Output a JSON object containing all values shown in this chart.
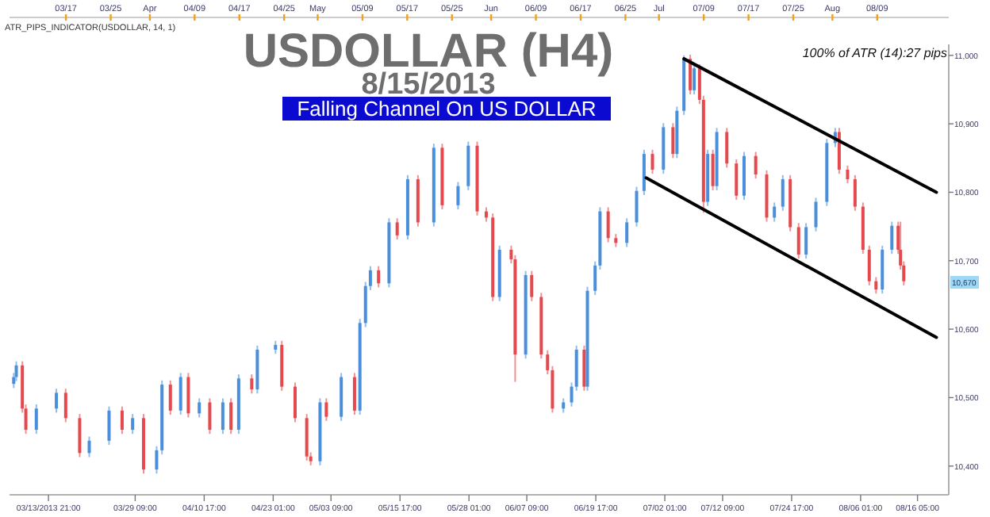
{
  "chart_data": {
    "type": "candlestick",
    "title": "USDOLLAR (H4)",
    "subtitle": "8/15/2013",
    "annotations": [
      "ATR_PIPS_INDICATOR(USDOLLAR, 14, 1)",
      "100% of ATR (14):27 pips",
      "Falling Channel On US DOLLAR",
      "10,670"
    ],
    "x": [
      "2013-03-07T16:00",
      "2013-03-08T03:00",
      "2013-03-09T05:00",
      "2013-03-09T20:00",
      "2013-03-11T17:00",
      "2013-03-15T07:00",
      "2013-03-16T23:00",
      "2013-03-19T11:00",
      "2013-03-21T04:00",
      "2013-03-24T17:00",
      "2013-03-27T01:00",
      "2013-03-28T22:00",
      "2013-03-30T21:00",
      "2013-04-02T05:00",
      "2013-04-03T04:00",
      "2013-04-04T16:00",
      "2013-04-06T12:00",
      "2013-04-07T21:00",
      "2013-04-09T20:00",
      "2013-04-11T17:00",
      "2013-04-14T01:00",
      "2013-04-15T12:00",
      "2013-04-16T21:00",
      "2013-04-19T05:00",
      "2013-04-20T05:00",
      "2013-04-23T11:00",
      "2013-04-24T14:00",
      "2013-04-26T23:00",
      "2013-04-29T01:00",
      "2013-04-29T18:00",
      "2013-05-01T10:00",
      "2013-05-02T13:00",
      "2013-05-05T05:00",
      "2013-05-07T14:00",
      "2013-05-08T13:00",
      "2013-05-09T13:00",
      "2013-05-10T10:00",
      "2013-05-11T21:00",
      "2013-05-13T18:00",
      "2013-05-15T05:00",
      "2013-05-17T02:00",
      "2013-05-18T22:00",
      "2013-05-21T18:00",
      "2013-05-23T06:00",
      "2013-05-26T02:00",
      "2013-05-27T22:00",
      "2013-05-29T12:00",
      "2013-05-31T03:00",
      "2013-06-01T07:00",
      "2013-06-02T12:00",
      "2013-06-04T14:00",
      "2013-06-05T07:00",
      "2013-06-07T04:00",
      "2013-06-08T06:00",
      "2013-06-09T23:00",
      "2013-06-11T02:00",
      "2013-06-11T23:00",
      "2013-06-13T22:00",
      "2013-06-15T09:00",
      "2013-06-16T06:00",
      "2013-06-17T15:00",
      "2013-06-18T05:00",
      "2013-06-19T14:00",
      "2013-06-20T11:00",
      "2013-06-21T22:00",
      "2013-06-23T07:00",
      "2013-06-25T06:00",
      "2013-06-27T00:00",
      "2013-06-28T08:00",
      "2013-06-29T20:00",
      "2013-07-01T19:00",
      "2013-07-03T12:00",
      "2013-07-04T05:00",
      "2013-07-05T11:00",
      "2013-07-06T14:00",
      "2013-07-07T07:00",
      "2013-07-08T06:00",
      "2013-07-08T23:00",
      "2013-07-09T17:00",
      "2013-07-10T15:00",
      "2013-07-11T08:00",
      "2013-07-13T03:00",
      "2013-07-14T20:00",
      "2013-07-16T05:00",
      "2013-07-18T07:00",
      "2013-07-20T06:00",
      "2013-07-21T15:00",
      "2013-07-23T03:00",
      "2013-07-24T11:00",
      "2013-07-25T23:00",
      "2013-07-27T07:00",
      "2013-07-29T01:00",
      "2013-07-31T00:00",
      "2013-08-01T12:00",
      "2013-08-02T05:00",
      "2013-08-03T17:00",
      "2013-08-05T01:00",
      "2013-08-06T11:00",
      "2013-08-07T14:00",
      "2013-08-08T19:00",
      "2013-08-09T22:00",
      "2013-08-11T15:00",
      "2013-08-12T18:00",
      "2013-08-13T04:00",
      "2013-08-13T18:00"
    ],
    "ohlc": [
      [
        10520,
        10536,
        10514,
        10530
      ],
      [
        10530,
        10553,
        10524,
        10547
      ],
      [
        10547,
        10553,
        10478,
        10484
      ],
      [
        10484,
        10490,
        10447,
        10453
      ],
      [
        10453,
        10490,
        10447,
        10484
      ],
      [
        10484,
        10513,
        10478,
        10507
      ],
      [
        10507,
        10513,
        10464,
        10470
      ],
      [
        10470,
        10476,
        10413,
        10419
      ],
      [
        10419,
        10443,
        10413,
        10437
      ],
      [
        10437,
        10487,
        10431,
        10481
      ],
      [
        10481,
        10487,
        10447,
        10453
      ],
      [
        10453,
        10476,
        10447,
        10470
      ],
      [
        10470,
        10476,
        10389,
        10395
      ],
      [
        10395,
        10429,
        10389,
        10423
      ],
      [
        10423,
        10525,
        10417,
        10519
      ],
      [
        10519,
        10525,
        10475,
        10481
      ],
      [
        10481,
        10536,
        10475,
        10530
      ],
      [
        10530,
        10536,
        10471,
        10477
      ],
      [
        10477,
        10499,
        10471,
        10493
      ],
      [
        10493,
        10499,
        10447,
        10453
      ],
      [
        10453,
        10499,
        10447,
        10493
      ],
      [
        10493,
        10499,
        10447,
        10453
      ],
      [
        10453,
        10534,
        10447,
        10528
      ],
      [
        10528,
        10534,
        10506,
        10512
      ],
      [
        10512,
        10576,
        10506,
        10570
      ],
      [
        10570,
        10583,
        10564,
        10577
      ],
      [
        10577,
        10583,
        10510,
        10516
      ],
      [
        10516,
        10522,
        10464,
        10470
      ],
      [
        10470,
        10476,
        10408,
        10414
      ],
      [
        10414,
        10420,
        10401,
        10407
      ],
      [
        10407,
        10499,
        10401,
        10493
      ],
      [
        10493,
        10499,
        10466,
        10472
      ],
      [
        10472,
        10536,
        10466,
        10530
      ],
      [
        10530,
        10536,
        10475,
        10481
      ],
      [
        10481,
        10615,
        10475,
        10609
      ],
      [
        10609,
        10669,
        10603,
        10663
      ],
      [
        10663,
        10692,
        10657,
        10686
      ],
      [
        10686,
        10692,
        10661,
        10667
      ],
      [
        10667,
        10762,
        10661,
        10756
      ],
      [
        10756,
        10762,
        10731,
        10737
      ],
      [
        10737,
        10825,
        10731,
        10819
      ],
      [
        10819,
        10825,
        10750,
        10756
      ],
      [
        10756,
        10871,
        10750,
        10865
      ],
      [
        10865,
        10871,
        10775,
        10781
      ],
      [
        10781,
        10815,
        10775,
        10809
      ],
      [
        10809,
        10874,
        10803,
        10868
      ],
      [
        10868,
        10874,
        10766,
        10772
      ],
      [
        10772,
        10778,
        10757,
        10763
      ],
      [
        10763,
        10769,
        10641,
        10647
      ],
      [
        10647,
        10722,
        10641,
        10716
      ],
      [
        10716,
        10722,
        10696,
        10702
      ],
      [
        10702,
        10708,
        10523,
        10563
      ],
      [
        10563,
        10685,
        10557,
        10679
      ],
      [
        10679,
        10685,
        10641,
        10647
      ],
      [
        10647,
        10653,
        10557,
        10563
      ],
      [
        10563,
        10569,
        10534,
        10540
      ],
      [
        10540,
        10546,
        10478,
        10484
      ],
      [
        10484,
        10499,
        10478,
        10493
      ],
      [
        10493,
        10522,
        10487,
        10516
      ],
      [
        10516,
        10576,
        10510,
        10570
      ],
      [
        10570,
        10576,
        10510,
        10516
      ],
      [
        10516,
        10662,
        10510,
        10656
      ],
      [
        10656,
        10699,
        10650,
        10693
      ],
      [
        10693,
        10778,
        10687,
        10772
      ],
      [
        10772,
        10778,
        10727,
        10733
      ],
      [
        10733,
        10739,
        10720,
        10726
      ],
      [
        10726,
        10762,
        10720,
        10756
      ],
      [
        10756,
        10808,
        10750,
        10802
      ],
      [
        10802,
        10862,
        10796,
        10856
      ],
      [
        10856,
        10862,
        10827,
        10833
      ],
      [
        10833,
        10901,
        10827,
        10895
      ],
      [
        10895,
        10901,
        10850,
        10856
      ],
      [
        10856,
        10925,
        10850,
        10919
      ],
      [
        10919,
        11000,
        10913,
        10995
      ],
      [
        10995,
        11001,
        10943,
        10949
      ],
      [
        10949,
        10987,
        10943,
        10981
      ],
      [
        10981,
        10987,
        10929,
        10935
      ],
      [
        10935,
        10941,
        10770,
        10786
      ],
      [
        10786,
        10862,
        10780,
        10856
      ],
      [
        10856,
        10862,
        10803,
        10809
      ],
      [
        10809,
        10894,
        10803,
        10888
      ],
      [
        10888,
        10894,
        10836,
        10842
      ],
      [
        10842,
        10848,
        10789,
        10795
      ],
      [
        10795,
        10859,
        10789,
        10853
      ],
      [
        10853,
        10859,
        10820,
        10826
      ],
      [
        10826,
        10832,
        10757,
        10763
      ],
      [
        10763,
        10785,
        10757,
        10779
      ],
      [
        10779,
        10825,
        10773,
        10819
      ],
      [
        10819,
        10825,
        10743,
        10749
      ],
      [
        10749,
        10755,
        10703,
        10709
      ],
      [
        10709,
        10755,
        10703,
        10749
      ],
      [
        10749,
        10792,
        10743,
        10786
      ],
      [
        10786,
        10878,
        10780,
        10872
      ],
      [
        10872,
        10894,
        10866,
        10888
      ],
      [
        10888,
        10894,
        10827,
        10833
      ],
      [
        10833,
        10839,
        10813,
        10819
      ],
      [
        10819,
        10825,
        10773,
        10779
      ],
      [
        10779,
        10785,
        10710,
        10716
      ],
      [
        10716,
        10722,
        10664,
        10670
      ],
      [
        10670,
        10676,
        10652,
        10658
      ],
      [
        10658,
        10722,
        10652,
        10716
      ],
      [
        10716,
        10757,
        10710,
        10751
      ],
      [
        10751,
        10757,
        10710,
        10716
      ],
      [
        10716,
        10757,
        10687,
        10693
      ],
      [
        10693,
        10699,
        10664,
        10670
      ]
    ],
    "colors": [
      "#4a8fdb",
      "#4a8fdb",
      "#e5484d",
      "#e5484d",
      "#4a8fdb",
      "#4a8fdb",
      "#e5484d",
      "#e5484d",
      "#4a8fdb",
      "#4a8fdb",
      "#e5484d",
      "#4a8fdb",
      "#e5484d",
      "#4a8fdb",
      "#4a8fdb",
      "#e5484d",
      "#4a8fdb",
      "#e5484d",
      "#4a8fdb",
      "#e5484d",
      "#4a8fdb",
      "#e5484d",
      "#4a8fdb",
      "#e5484d",
      "#4a8fdb",
      "#4a8fdb",
      "#e5484d",
      "#e5484d",
      "#e5484d",
      "#e5484d",
      "#4a8fdb",
      "#e5484d",
      "#4a8fdb",
      "#e5484d",
      "#4a8fdb",
      "#4a8fdb",
      "#4a8fdb",
      "#e5484d",
      "#4a8fdb",
      "#e5484d",
      "#4a8fdb",
      "#e5484d",
      "#4a8fdb",
      "#e5484d",
      "#4a8fdb",
      "#4a8fdb",
      "#e5484d",
      "#e5484d",
      "#e5484d",
      "#4a8fdb",
      "#e5484d",
      "#e5484d",
      "#4a8fdb",
      "#e5484d",
      "#e5484d",
      "#e5484d",
      "#e5484d",
      "#4a8fdb",
      "#4a8fdb",
      "#4a8fdb",
      "#e5484d",
      "#4a8fdb",
      "#4a8fdb",
      "#4a8fdb",
      "#e5484d",
      "#e5484d",
      "#4a8fdb",
      "#4a8fdb",
      "#4a8fdb",
      "#e5484d",
      "#4a8fdb",
      "#e5484d",
      "#4a8fdb",
      "#4a8fdb",
      "#e5484d",
      "#4a8fdb",
      "#e5484d",
      "#e5484d",
      "#4a8fdb",
      "#e5484d",
      "#4a8fdb",
      "#e5484d",
      "#e5484d",
      "#4a8fdb",
      "#e5484d",
      "#e5484d",
      "#4a8fdb",
      "#4a8fdb",
      "#e5484d",
      "#e5484d",
      "#4a8fdb",
      "#4a8fdb",
      "#4a8fdb",
      "#4a8fdb",
      "#e5484d",
      "#e5484d",
      "#e5484d",
      "#e5484d",
      "#e5484d",
      "#e5484d",
      "#4a8fdb",
      "#4a8fdb",
      "#e5484d",
      "#e5484d",
      "#e5484d"
    ],
    "series": [
      {
        "type": "line",
        "color": "#000000",
        "x": [
          "2013-07-05T11:00",
          "2013-08-19T14:00"
        ],
        "values": [
          10995,
          10800
        ]
      },
      {
        "type": "line",
        "color": "#000000",
        "x": [
          "2013-06-28T17:00",
          "2013-08-19T14:00"
        ],
        "values": [
          10821,
          10588
        ]
      }
    ],
    "xlim": [
      "2013-03-06T22:00",
      "2013-08-21T19:00"
    ],
    "xticks": [
      {
        "value": "2013-03-13T21:00",
        "label": "03/13/2013 21:00"
      },
      {
        "value": "2013-03-29T09:00",
        "label": "03/29 09:00"
      },
      {
        "value": "2013-04-10T17:00",
        "label": "04/10 17:00"
      },
      {
        "value": "2013-04-23T01:00",
        "label": "04/23 01:00"
      },
      {
        "value": "2013-05-03T09:00",
        "label": "05/03 09:00"
      },
      {
        "value": "2013-05-15T17:00",
        "label": "05/15 17:00"
      },
      {
        "value": "2013-05-28T01:00",
        "label": "05/28 01:00"
      },
      {
        "value": "2013-06-07T09:00",
        "label": "06/07 09:00"
      },
      {
        "value": "2013-06-19T17:00",
        "label": "06/19 17:00"
      },
      {
        "value": "2013-07-02T01:00",
        "label": "07/02 01:00"
      },
      {
        "value": "2013-07-12T09:00",
        "label": "07/12 09:00"
      },
      {
        "value": "2013-07-24T17:00",
        "label": "07/24 17:00"
      },
      {
        "value": "2013-08-06T01:00",
        "label": "08/06 01:00"
      },
      {
        "value": "2013-08-16T05:00",
        "label": "08/16 05:00"
      }
    ],
    "x2lim": [
      "2013-03-06T22:00",
      "2013-08-21T19:00"
    ],
    "x2ticks": [
      {
        "value": "2013-03-17",
        "label": "03/17"
      },
      {
        "value": "2013-03-25",
        "label": "03/25"
      },
      {
        "value": "2013-04-01",
        "label": "Apr"
      },
      {
        "value": "2013-04-09",
        "label": "04/09"
      },
      {
        "value": "2013-04-17",
        "label": "04/17"
      },
      {
        "value": "2013-04-25",
        "label": "04/25"
      },
      {
        "value": "2013-05-01",
        "label": "May"
      },
      {
        "value": "2013-05-09",
        "label": "05/09"
      },
      {
        "value": "2013-05-17",
        "label": "05/17"
      },
      {
        "value": "2013-05-25",
        "label": "05/25"
      },
      {
        "value": "2013-06-01",
        "label": "Jun"
      },
      {
        "value": "2013-06-09",
        "label": "06/09"
      },
      {
        "value": "2013-06-17",
        "label": "06/17"
      },
      {
        "value": "2013-06-25",
        "label": "06/25"
      },
      {
        "value": "2013-07-01",
        "label": "Jul"
      },
      {
        "value": "2013-07-09",
        "label": "07/09"
      },
      {
        "value": "2013-07-17",
        "label": "07/17"
      },
      {
        "value": "2013-07-25",
        "label": "07/25"
      },
      {
        "value": "2013-08-01",
        "label": "Aug"
      },
      {
        "value": "2013-08-09",
        "label": "08/09"
      }
    ],
    "ylim": [
      10358,
      11016
    ],
    "yticks": [
      {
        "value": 10400,
        "label": "10,400"
      },
      {
        "value": 10500,
        "label": "10,500"
      },
      {
        "value": 10600,
        "label": "10,600"
      },
      {
        "value": 10700,
        "label": "10,700"
      },
      {
        "value": 10800,
        "label": "10,800"
      },
      {
        "value": 10900,
        "label": "10,900"
      },
      {
        "value": 11000,
        "label": "11,000"
      }
    ]
  }
}
